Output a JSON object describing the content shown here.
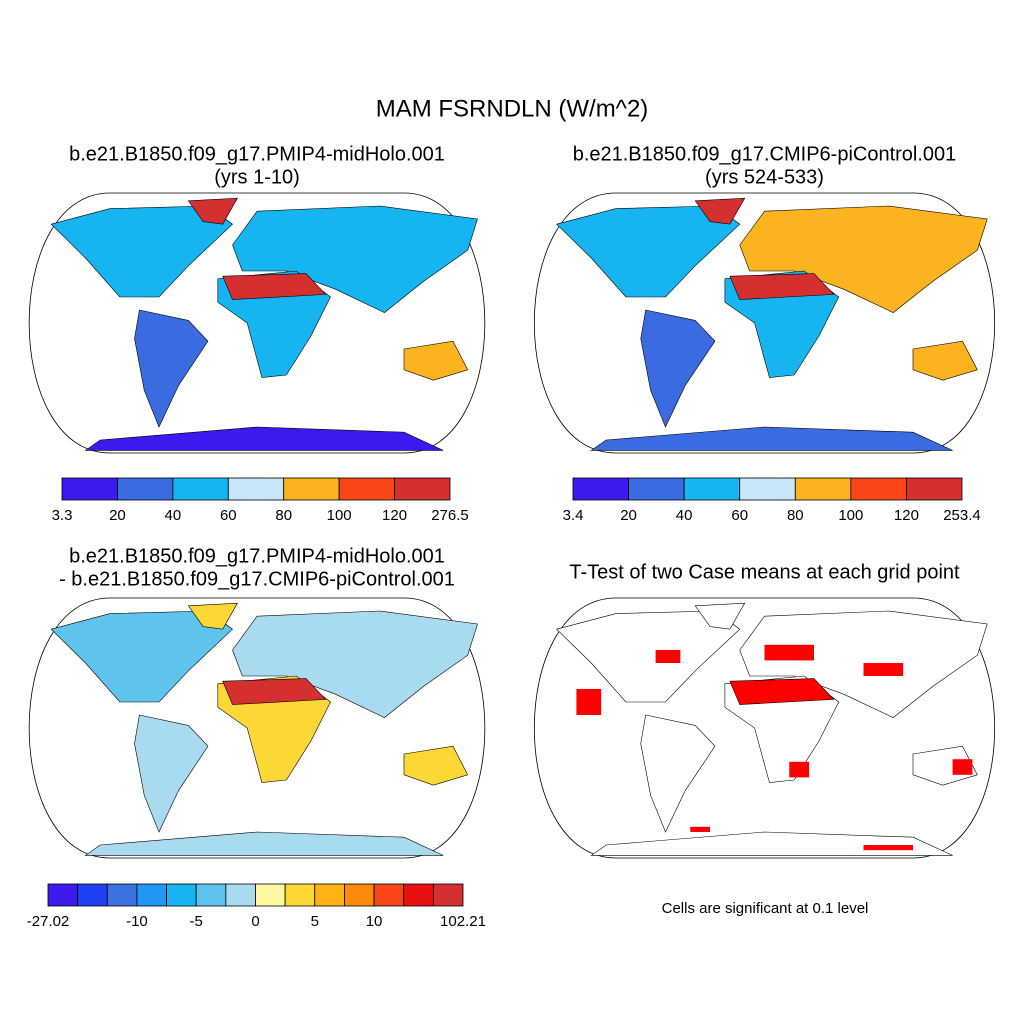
{
  "title": "MAM FSRNDLN (W/m^2)",
  "panels": [
    {
      "title": [
        "b.e21.B1850.f09_g17.PMIP4-midHolo.001",
        "(yrs 1-10)"
      ],
      "colorbar": {
        "colors": [
          "#3c1aee",
          "#3a6be0",
          "#16b4f0",
          "#c7e6f8",
          "#fbb320",
          "#f84616",
          "#d43030"
        ],
        "labels": [
          3.3,
          20,
          40,
          60,
          80,
          100,
          120,
          276.5
        ]
      }
    },
    {
      "title": [
        "b.e21.B1850.f09_g17.CMIP6-piControl.001",
        "(yrs 524-533)"
      ],
      "colorbar": {
        "colors": [
          "#3c1aee",
          "#3a6be0",
          "#16b4f0",
          "#c7e6f8",
          "#fbb320",
          "#f84616",
          "#d43030"
        ],
        "labels": [
          3.4,
          20,
          40,
          60,
          80,
          100,
          120,
          253.4
        ]
      }
    },
    {
      "title": [
        "b.e21.B1850.f09_g17.PMIP4-midHolo.001",
        "- b.e21.B1850.f09_g17.CMIP6-piControl.001"
      ],
      "colorbar": {
        "colors": [
          "#3c1aee",
          "#2040f5",
          "#3a72e0",
          "#2196f3",
          "#16b4f0",
          "#5ec4ee",
          "#a8daf0",
          "#fff8a0",
          "#fcd837",
          "#fcb313",
          "#f98a0c",
          "#f84616",
          "#e81010",
          "#d43030"
        ],
        "labels": [
          -27.02,
          null,
          null,
          -10,
          null,
          -5,
          null,
          0,
          null,
          5,
          null,
          10,
          null,
          null,
          102.21
        ]
      }
    },
    {
      "title": [
        "T-Test of two Case means at each grid point"
      ],
      "note": "Cells are significant at 0.1 level"
    }
  ]
}
